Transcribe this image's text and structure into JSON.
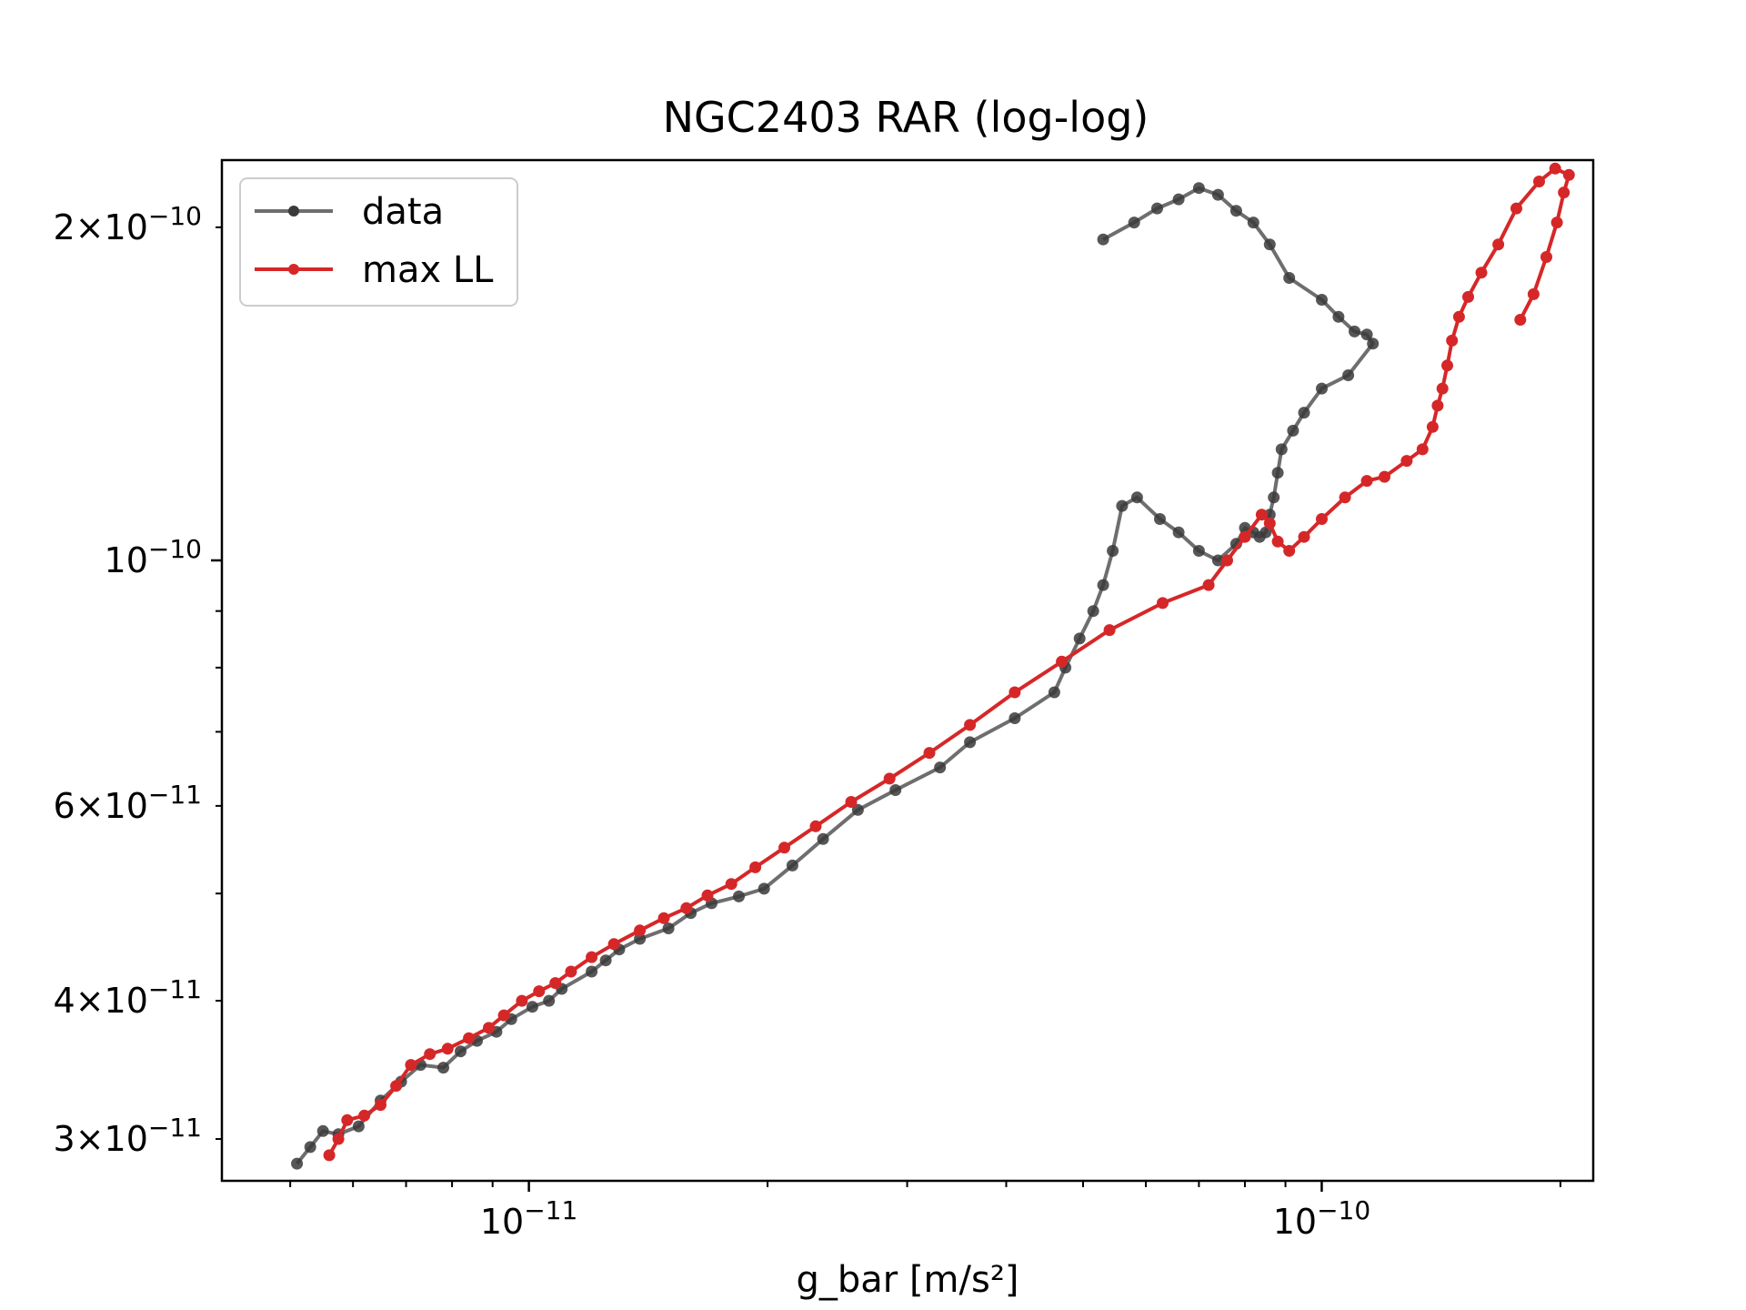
{
  "chart_data": {
    "type": "line",
    "title": "NGC2403 RAR (log-log)",
    "xlabel": "g_bar [m/s²]",
    "ylabel": "",
    "x_scale": "log",
    "y_scale": "log",
    "xlim": [
      4.1e-12,
      2.2e-10
    ],
    "ylim": [
      2.75e-11,
      2.3e-10
    ],
    "x_ticks": [
      {
        "value": 1e-11,
        "mantissa": "",
        "exp": "−11"
      },
      {
        "value": 1e-10,
        "mantissa": "",
        "exp": "−10"
      }
    ],
    "y_ticks": [
      {
        "value": 3e-11,
        "mantissa": "3",
        "exp": "−11"
      },
      {
        "value": 4e-11,
        "mantissa": "4",
        "exp": "−11"
      },
      {
        "value": 6e-11,
        "mantissa": "6",
        "exp": "−11"
      },
      {
        "value": 1e-10,
        "mantissa": "",
        "exp": "−10"
      },
      {
        "value": 2e-10,
        "mantissa": "2",
        "exp": "−10"
      }
    ],
    "grid": false,
    "legend_position": "upper-left",
    "series": [
      {
        "name": "data",
        "color": "#6e6e6e",
        "marker_color": "#3a3a3a",
        "x": [
          5.1e-12,
          5.3e-12,
          5.5e-12,
          5.75e-12,
          6.1e-12,
          6.5e-12,
          6.9e-12,
          7.3e-12,
          7.8e-12,
          8.2e-12,
          8.6e-12,
          9.1e-12,
          9.5e-12,
          1.01e-11,
          1.06e-11,
          1.1e-11,
          1.2e-11,
          1.25e-11,
          1.3e-11,
          1.38e-11,
          1.5e-11,
          1.6e-11,
          1.7e-11,
          1.84e-11,
          1.98e-11,
          2.15e-11,
          2.35e-11,
          2.6e-11,
          2.9e-11,
          3.3e-11,
          3.6e-11,
          4.1e-11,
          4.6e-11,
          4.75e-11,
          4.95e-11,
          5.15e-11,
          5.3e-11,
          5.45e-11,
          5.6e-11,
          5.85e-11,
          6.25e-11,
          6.6e-11,
          7e-11,
          7.4e-11,
          7.8e-11,
          8e-11,
          8.2e-11,
          8.35e-11,
          8.5e-11,
          8.6e-11,
          8.7e-11,
          8.8e-11,
          8.9e-11,
          9.2e-11,
          9.5e-11,
          1e-10,
          1.08e-10,
          1.16e-10,
          1.14e-10,
          1.1e-10,
          1.05e-10,
          1e-10,
          9.1e-11,
          8.6e-11,
          8.2e-11,
          7.8e-11,
          7.4e-11,
          7e-11,
          6.6e-11,
          6.2e-11,
          5.8e-11,
          5.3e-11
        ],
        "y": [
          2.85e-11,
          2.95e-11,
          3.05e-11,
          3.03e-11,
          3.08e-11,
          3.25e-11,
          3.38e-11,
          3.5e-11,
          3.48e-11,
          3.6e-11,
          3.68e-11,
          3.75e-11,
          3.85e-11,
          3.95e-11,
          4e-11,
          4.1e-11,
          4.25e-11,
          4.35e-11,
          4.45e-11,
          4.55e-11,
          4.65e-11,
          4.8e-11,
          4.9e-11,
          4.97e-11,
          5.05e-11,
          5.3e-11,
          5.6e-11,
          5.95e-11,
          6.2e-11,
          6.5e-11,
          6.85e-11,
          7.2e-11,
          7.6e-11,
          8e-11,
          8.5e-11,
          9e-11,
          9.5e-11,
          1.02e-10,
          1.12e-10,
          1.14e-10,
          1.09e-10,
          1.06e-10,
          1.02e-10,
          1e-10,
          1.035e-10,
          1.07e-10,
          1.06e-10,
          1.05e-10,
          1.06e-10,
          1.1e-10,
          1.14e-10,
          1.2e-10,
          1.26e-10,
          1.31e-10,
          1.36e-10,
          1.43e-10,
          1.47e-10,
          1.57e-10,
          1.6e-10,
          1.61e-10,
          1.66e-10,
          1.72e-10,
          1.8e-10,
          1.93e-10,
          2.02e-10,
          2.07e-10,
          2.14e-10,
          2.17e-10,
          2.12e-10,
          2.08e-10,
          2.02e-10,
          1.95e-10
        ]
      },
      {
        "name": "max LL",
        "color": "#d62728",
        "marker_color": "#d62728",
        "x": [
          5.6e-12,
          5.75e-12,
          5.9e-12,
          6.2e-12,
          6.5e-12,
          6.8e-12,
          7.1e-12,
          7.5e-12,
          7.9e-12,
          8.4e-12,
          8.9e-12,
          9.3e-12,
          9.8e-12,
          1.03e-11,
          1.08e-11,
          1.13e-11,
          1.2e-11,
          1.28e-11,
          1.38e-11,
          1.48e-11,
          1.58e-11,
          1.68e-11,
          1.8e-11,
          1.93e-11,
          2.1e-11,
          2.3e-11,
          2.55e-11,
          2.85e-11,
          3.2e-11,
          3.6e-11,
          4.1e-11,
          4.7e-11,
          5.4e-11,
          6.3e-11,
          7.2e-11,
          7.6e-11,
          8e-11,
          8.4e-11,
          8.6e-11,
          8.8e-11,
          9.1e-11,
          9.5e-11,
          1e-10,
          1.07e-10,
          1.14e-10,
          1.2e-10,
          1.28e-10,
          1.34e-10,
          1.38e-10,
          1.4e-10,
          1.42e-10,
          1.44e-10,
          1.46e-10,
          1.49e-10,
          1.53e-10,
          1.59e-10,
          1.67e-10,
          1.76e-10,
          1.88e-10,
          1.97e-10,
          2.05e-10,
          2.02e-10,
          1.98e-10,
          1.92e-10,
          1.85e-10,
          1.78e-10
        ],
        "y": [
          2.9e-11,
          3e-11,
          3.12e-11,
          3.15e-11,
          3.22e-11,
          3.35e-11,
          3.5e-11,
          3.58e-11,
          3.62e-11,
          3.7e-11,
          3.78e-11,
          3.88e-11,
          4e-11,
          4.08e-11,
          4.15e-11,
          4.25e-11,
          4.38e-11,
          4.5e-11,
          4.63e-11,
          4.75e-11,
          4.85e-11,
          4.98e-11,
          5.1e-11,
          5.28e-11,
          5.5e-11,
          5.75e-11,
          6.05e-11,
          6.35e-11,
          6.7e-11,
          7.1e-11,
          7.6e-11,
          8.1e-11,
          8.65e-11,
          9.15e-11,
          9.5e-11,
          1e-10,
          1.05e-10,
          1.1e-10,
          1.08e-10,
          1.04e-10,
          1.02e-10,
          1.05e-10,
          1.09e-10,
          1.14e-10,
          1.18e-10,
          1.19e-10,
          1.23e-10,
          1.26e-10,
          1.32e-10,
          1.38e-10,
          1.43e-10,
          1.5e-10,
          1.58e-10,
          1.66e-10,
          1.73e-10,
          1.82e-10,
          1.93e-10,
          2.08e-10,
          2.2e-10,
          2.26e-10,
          2.23e-10,
          2.15e-10,
          2.02e-10,
          1.88e-10,
          1.74e-10,
          1.65e-10
        ]
      }
    ]
  }
}
